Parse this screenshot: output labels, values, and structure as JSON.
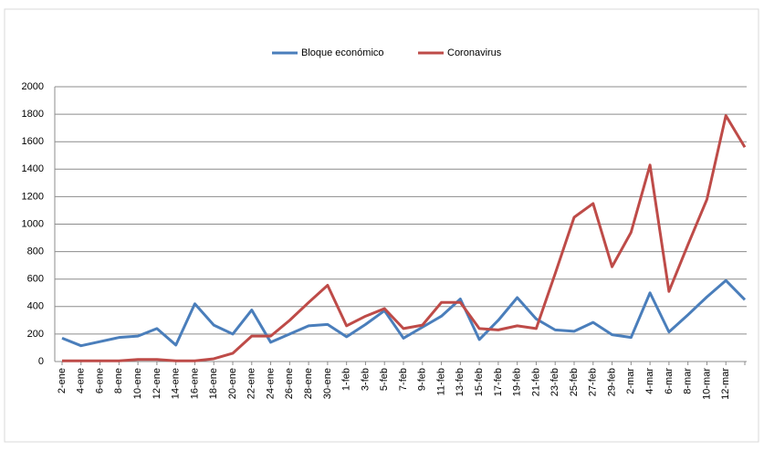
{
  "chart_data": {
    "type": "line",
    "categories": [
      "2-ene",
      "4-ene",
      "6-ene",
      "8-ene",
      "10-ene",
      "12-ene",
      "14-ene",
      "16-ene",
      "18-ene",
      "20-ene",
      "22-ene",
      "24-ene",
      "26-ene",
      "28-ene",
      "30-ene",
      "1-feb",
      "3-feb",
      "5-feb",
      "7-feb",
      "9-feb",
      "11-feb",
      "13-feb",
      "15-feb",
      "17-feb",
      "19-feb",
      "21-feb",
      "23-feb",
      "25-feb",
      "27-feb",
      "29-feb",
      "2-mar",
      "4-mar",
      "6-mar",
      "8-mar",
      "10-mar",
      "12-mar",
      null
    ],
    "series": [
      {
        "name": "Bloque económico",
        "color": "#4a7ebb",
        "values": [
          170,
          115,
          145,
          175,
          185,
          240,
          120,
          420,
          265,
          200,
          375,
          140,
          200,
          260,
          270,
          180,
          270,
          370,
          170,
          250,
          330,
          455,
          160,
          300,
          465,
          310,
          230,
          220,
          285,
          195,
          175,
          500,
          215,
          340,
          470,
          590,
          450
        ]
      },
      {
        "name": "Coronavirus",
        "color": "#be4b48",
        "values": [
          5,
          5,
          5,
          5,
          15,
          15,
          5,
          5,
          20,
          60,
          185,
          185,
          300,
          430,
          555,
          260,
          330,
          385,
          240,
          265,
          430,
          430,
          240,
          230,
          260,
          240,
          640,
          1050,
          1150,
          690,
          940,
          1430,
          510,
          850,
          1180,
          1790,
          1560
        ]
      }
    ],
    "ylim": [
      0,
      2000
    ],
    "yticks": [
      0,
      200,
      400,
      600,
      800,
      1000,
      1200,
      1400,
      1600,
      1800,
      2000
    ],
    "grid": true
  }
}
